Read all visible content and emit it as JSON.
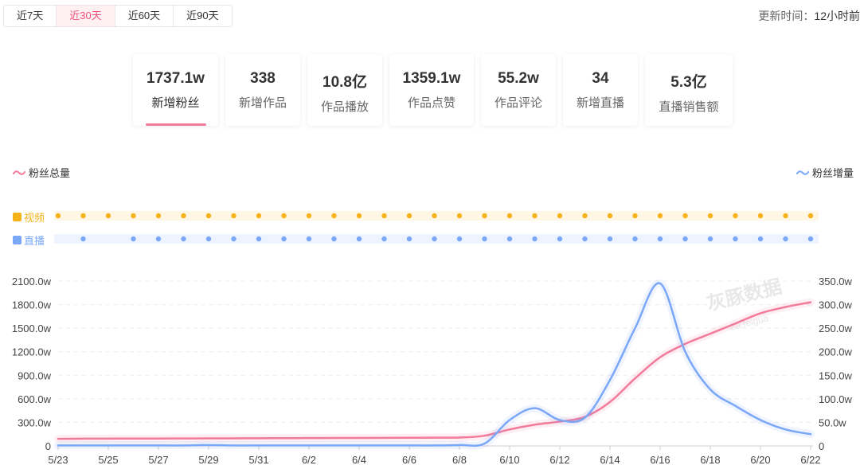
{
  "tabs": [
    {
      "label": "近7天",
      "active": false
    },
    {
      "label": "近30天",
      "active": true
    },
    {
      "label": "近60天",
      "active": false
    },
    {
      "label": "近90天",
      "active": false
    }
  ],
  "update": {
    "prefix": "更新时间：",
    "value": "12小时前"
  },
  "stats": [
    {
      "value": "1737.1w",
      "label": "新增粉丝",
      "active": true
    },
    {
      "value": "338",
      "label": "新增作品",
      "active": false
    },
    {
      "value": "10.8亿",
      "label": "作品播放",
      "active": false
    },
    {
      "value": "1359.1w",
      "label": "作品点赞",
      "active": false
    },
    {
      "value": "55.2w",
      "label": "作品评论",
      "active": false
    },
    {
      "value": "34",
      "label": "新增直播",
      "active": false
    },
    {
      "value": "5.3亿",
      "label": "直播销售额",
      "active": false
    }
  ],
  "colors": {
    "pink": "#f27a9a",
    "blue": "#7aa7f7",
    "orange": "#f5b21b"
  },
  "watermark": {
    "main": "灰豚数据",
    "sub": "ea.feigua"
  },
  "chart_data": {
    "type": "line",
    "legend_left": "粉丝总量",
    "legend_right": "粉丝增量",
    "tracks": [
      {
        "label": "视频",
        "color": "#f5b21b",
        "present": [
          1,
          1,
          1,
          1,
          1,
          1,
          1,
          1,
          1,
          1,
          1,
          1,
          1,
          1,
          1,
          1,
          1,
          1,
          1,
          1,
          1,
          1,
          1,
          1,
          1,
          1,
          1,
          1,
          1,
          1,
          1
        ]
      },
      {
        "label": "直播",
        "color": "#7aa7f7",
        "present": [
          0,
          1,
          0,
          1,
          1,
          1,
          1,
          1,
          1,
          1,
          1,
          1,
          1,
          1,
          1,
          1,
          1,
          1,
          1,
          1,
          1,
          1,
          1,
          1,
          1,
          1,
          1,
          1,
          1,
          1,
          1
        ]
      }
    ],
    "x": [
      "5/23",
      "5/24",
      "5/25",
      "5/26",
      "5/27",
      "5/28",
      "5/29",
      "5/30",
      "5/31",
      "6/1",
      "6/2",
      "6/3",
      "6/4",
      "6/5",
      "6/6",
      "6/7",
      "6/8",
      "6/9",
      "6/10",
      "6/11",
      "6/12",
      "6/13",
      "6/14",
      "6/15",
      "6/16",
      "6/17",
      "6/18",
      "6/19",
      "6/20",
      "6/21",
      "6/22"
    ],
    "xticks": [
      "5/23",
      "5/25",
      "5/27",
      "5/29",
      "5/31",
      "6/2",
      "6/4",
      "6/6",
      "6/8",
      "6/10",
      "6/12",
      "6/14",
      "6/16",
      "6/18",
      "6/20",
      "6/22"
    ],
    "series": [
      {
        "name": "粉丝总量",
        "axis": "left",
        "color": "#f27a9a",
        "values": [
          90,
          92,
          93,
          94,
          94,
          95,
          96,
          97,
          98,
          99,
          100,
          101,
          102,
          103,
          104,
          105,
          107,
          130,
          210,
          270,
          310,
          370,
          560,
          860,
          1130,
          1300,
          1430,
          1560,
          1690,
          1770,
          1830
        ]
      },
      {
        "name": "粉丝增量",
        "axis": "right",
        "color": "#7aa7f7",
        "values": [
          1,
          1,
          1,
          1,
          1,
          1,
          2,
          1,
          1,
          1,
          1,
          1,
          1,
          1,
          1,
          1,
          2,
          5,
          55,
          80,
          55,
          60,
          140,
          250,
          345,
          200,
          120,
          85,
          55,
          35,
          25
        ]
      }
    ],
    "left_axis": {
      "ticks": [
        "0",
        "300.0w",
        "600.0w",
        "900.0w",
        "1200.0w",
        "1500.0w",
        "1800.0w",
        "2100.0w"
      ],
      "max": 2100
    },
    "right_axis": {
      "ticks": [
        "0",
        "50.0w",
        "100.0w",
        "150.0w",
        "200.0w",
        "250.0w",
        "300.0w",
        "350.0w"
      ],
      "max": 350
    }
  }
}
